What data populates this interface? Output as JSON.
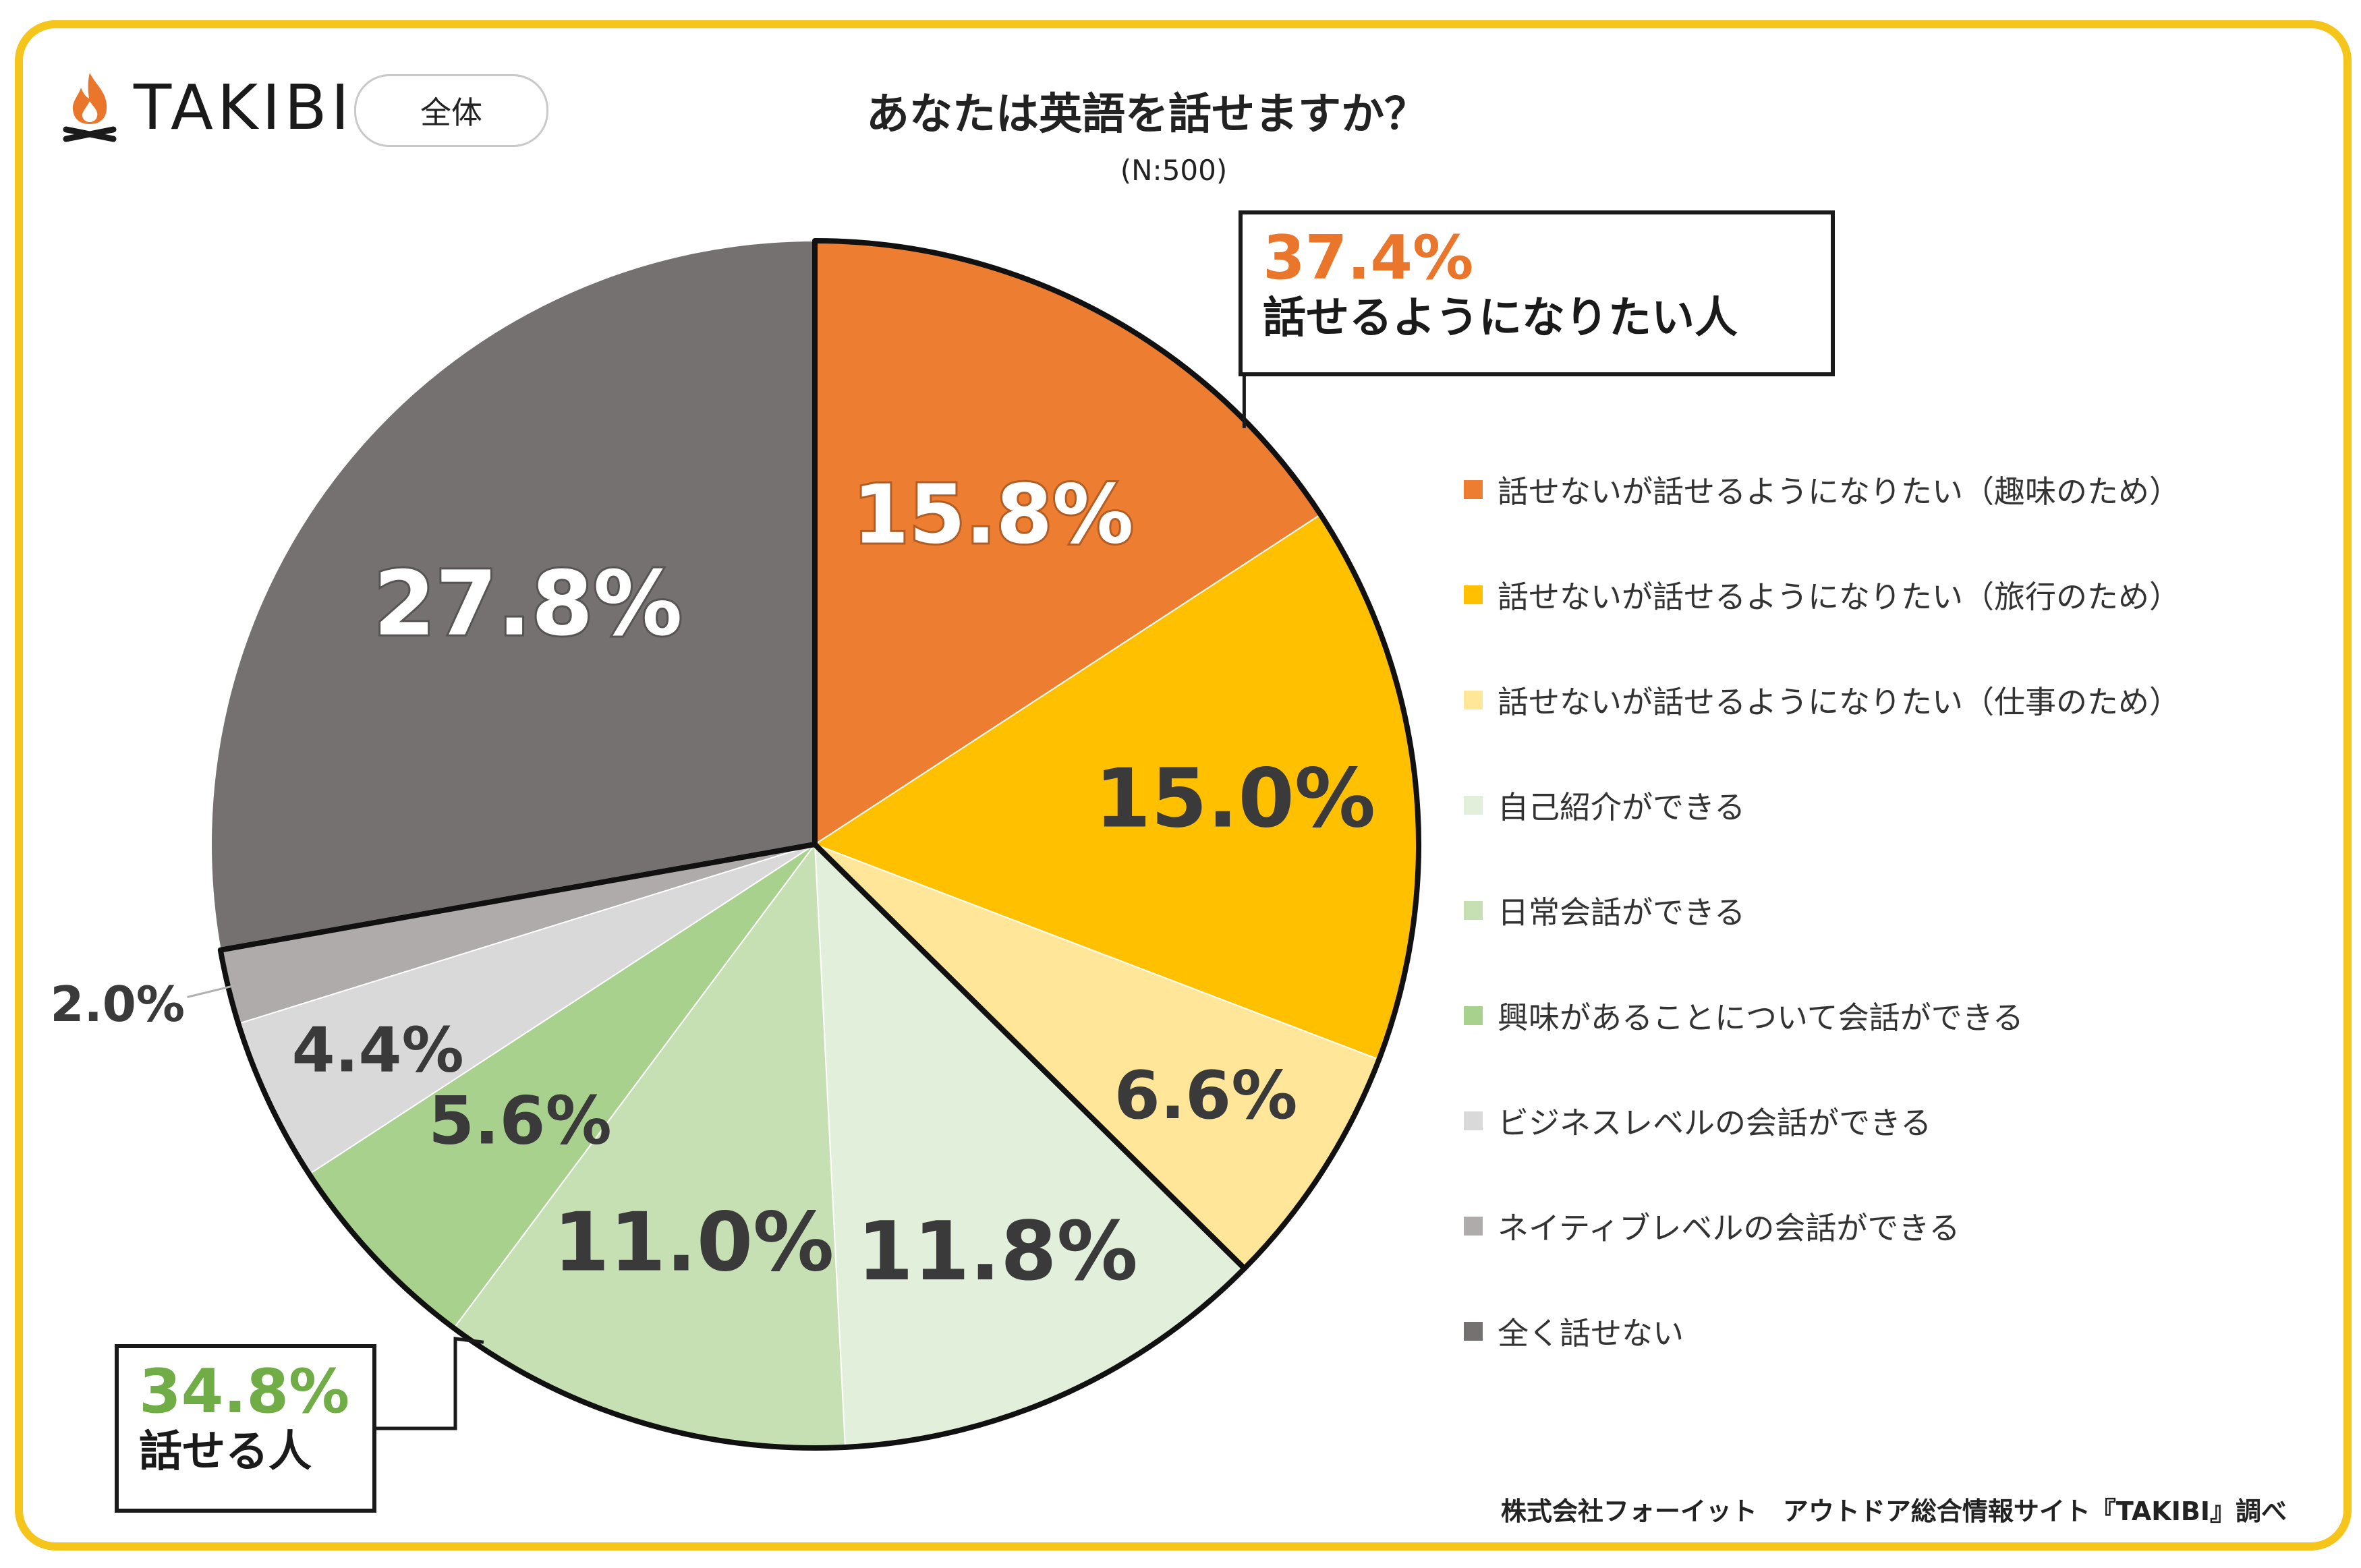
{
  "brand": {
    "name": "TAKIBI",
    "flame_color": "#E9762B",
    "logo_icon": "campfire-icon"
  },
  "badge": "全体",
  "chart_data": {
    "type": "pie",
    "title": "あなたは英語を話せますか？",
    "subtitle": "(N:500)",
    "unit": "%",
    "start_angle_deg": 0,
    "direction": "clockwise",
    "slices": [
      {
        "name": "話せないが話せるようになりたい（趣味のため）",
        "value": 15.8,
        "label": "15.8%",
        "color": "#ED7D31",
        "label_color": "#ffffff"
      },
      {
        "name": "話せないが話せるようになりたい（旅行のため）",
        "value": 15.0,
        "label": "15.0%",
        "color": "#FFC000",
        "label_color": "#3a3a3a"
      },
      {
        "name": "話せないが話せるようになりたい（仕事のため）",
        "value": 6.6,
        "label": "6.6%",
        "color": "#FFE699",
        "label_color": "#3a3a3a"
      },
      {
        "name": "自己紹介ができる",
        "value": 11.8,
        "label": "11.8%",
        "color": "#E2EFDA",
        "label_color": "#3a3a3a"
      },
      {
        "name": "日常会話ができる",
        "value": 11.0,
        "label": "11.0%",
        "color": "#C6E0B4",
        "label_color": "#3a3a3a"
      },
      {
        "name": "興味があることについて会話ができる",
        "value": 5.6,
        "label": "5.6%",
        "color": "#A9D18E",
        "label_color": "#3a3a3a"
      },
      {
        "name": "ビジネスレベルの会話ができる",
        "value": 4.4,
        "label": "4.4%",
        "color": "#D9D9D9",
        "label_color": "#3a3a3a"
      },
      {
        "name": "ネイティブレベルの会話ができる",
        "value": 2.0,
        "label": "2.0%",
        "color": "#AFABAB",
        "label_color": "#3a3a3a"
      },
      {
        "name": "全く話せない",
        "value": 27.8,
        "label": "27.8%",
        "color": "#767171",
        "label_color": "#ffffff"
      }
    ],
    "groups": [
      {
        "value": "37.4%",
        "label": "話せるようになりたい人",
        "color": "#E9762B",
        "slices": [
          0,
          1,
          2
        ]
      },
      {
        "value": "34.8%",
        "label": "話せる人",
        "color": "#70AD47",
        "slices": [
          3,
          4,
          5,
          6,
          7
        ]
      }
    ],
    "legend_position": "right"
  },
  "source": "株式会社フォーイット　アウトドア総合情報サイト『TAKIBI』調べ"
}
